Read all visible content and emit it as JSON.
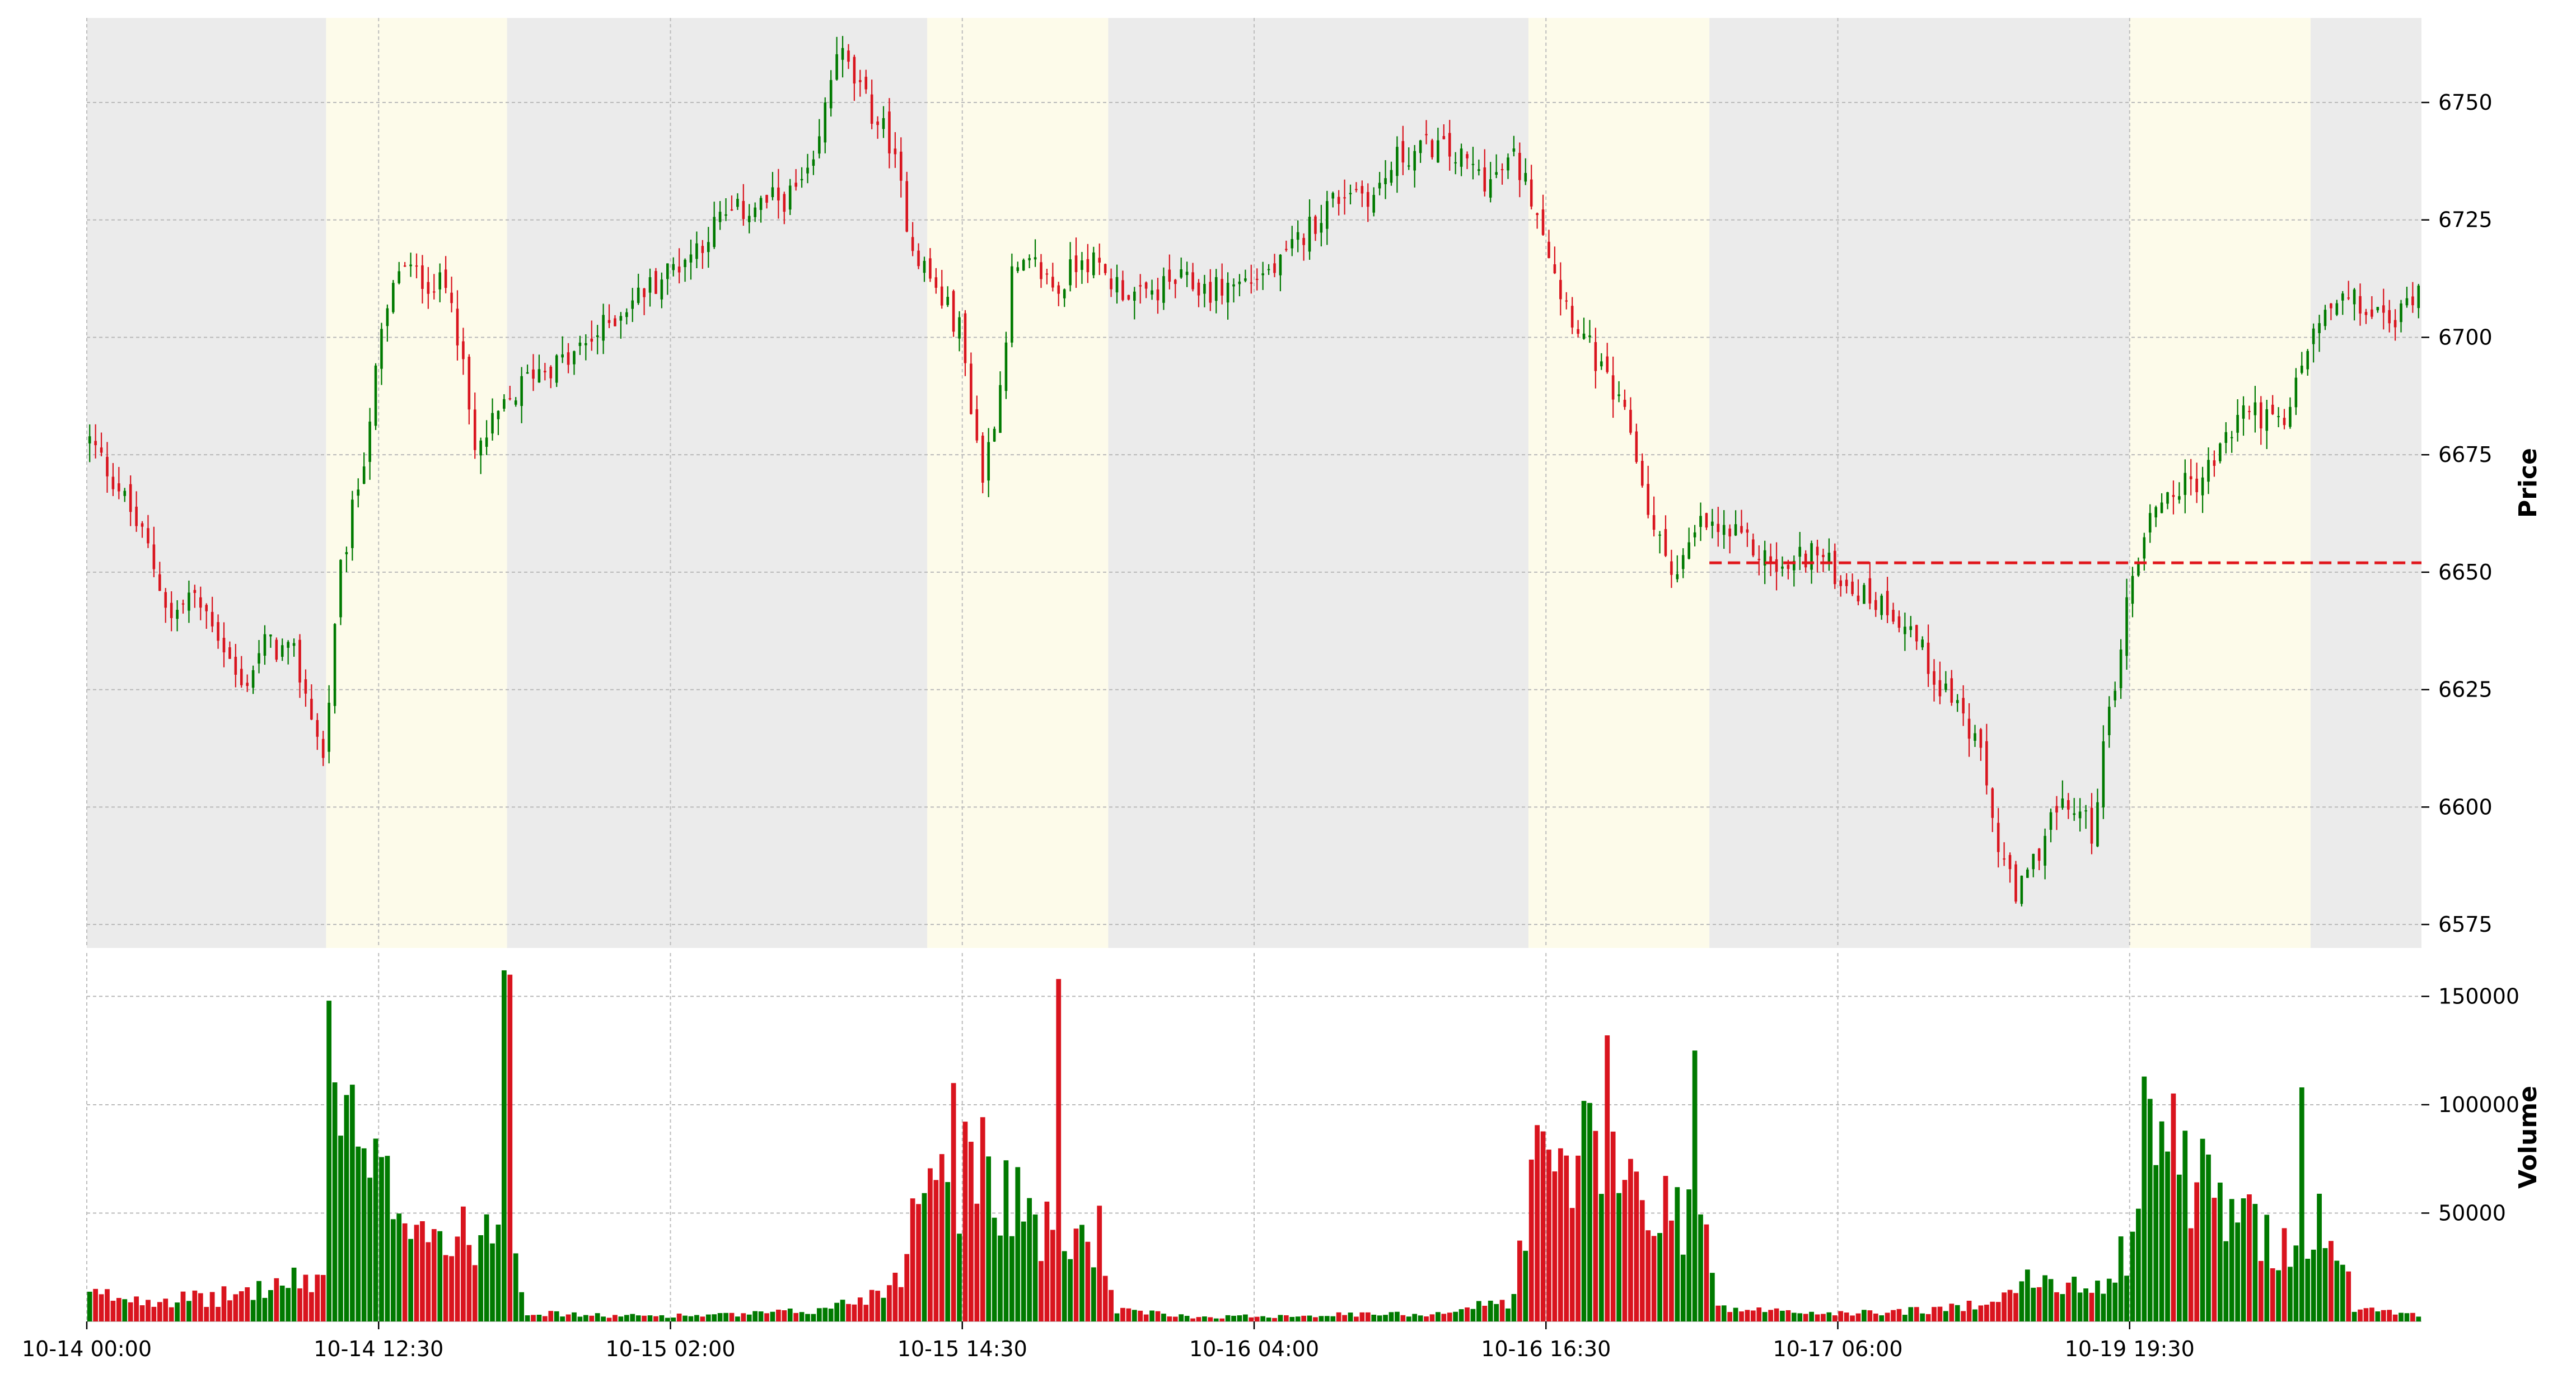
{
  "chart_data": {
    "type": "candlestick",
    "title": "",
    "x_tick_labels": [
      "10-14 00:00",
      "10-14 12:30",
      "10-15 02:00",
      "10-15 14:30",
      "10-16 04:00",
      "10-16 16:30",
      "10-17 06:00",
      "10-19 19:30"
    ],
    "price_panel": {
      "ylabel": "Price",
      "ylim": [
        6570,
        6768
      ],
      "yticks": [
        6575,
        6600,
        6625,
        6650,
        6675,
        6700,
        6725,
        6750
      ],
      "reference_line": {
        "value": 6652,
        "color": "#e0161b",
        "style": "dashed"
      },
      "session_shading": [
        {
          "from": 0,
          "to": 41,
          "color": "#ebebeb"
        },
        {
          "from": 41,
          "to": 72,
          "color": "#fdfbea"
        },
        {
          "from": 72,
          "to": 144,
          "color": "#ebebeb"
        },
        {
          "from": 144,
          "to": 175,
          "color": "#fdfbea"
        },
        {
          "from": 175,
          "to": 247,
          "color": "#ebebeb"
        },
        {
          "from": 247,
          "to": 278,
          "color": "#fdfbea"
        },
        {
          "from": 278,
          "to": 350,
          "color": "#ebebeb"
        },
        {
          "from": 350,
          "to": 381,
          "color": "#fdfbea"
        },
        {
          "from": 381,
          "to": 400,
          "color": "#ebebeb"
        }
      ]
    },
    "volume_panel": {
      "ylabel": "Volume",
      "ylim": [
        0,
        170000
      ],
      "yticks": [
        50000,
        100000,
        150000
      ]
    },
    "close_anchors": [
      [
        0,
        6678
      ],
      [
        5,
        6668
      ],
      [
        10,
        6655
      ],
      [
        14,
        6640
      ],
      [
        17,
        6645
      ],
      [
        21,
        6640
      ],
      [
        26,
        6625
      ],
      [
        30,
        6635
      ],
      [
        35,
        6632
      ],
      [
        38,
        6620
      ],
      [
        40,
        6610
      ],
      [
        43,
        6650
      ],
      [
        47,
        6675
      ],
      [
        50,
        6700
      ],
      [
        53,
        6715
      ],
      [
        58,
        6712
      ],
      [
        62,
        6710
      ],
      [
        66,
        6675
      ],
      [
        70,
        6683
      ],
      [
        76,
        6693
      ],
      [
        82,
        6695
      ],
      [
        88,
        6702
      ],
      [
        92,
        6707
      ],
      [
        97,
        6712
      ],
      [
        103,
        6718
      ],
      [
        108,
        6725
      ],
      [
        114,
        6728
      ],
      [
        120,
        6730
      ],
      [
        124,
        6735
      ],
      [
        128,
        6762
      ],
      [
        132,
        6752
      ],
      [
        137,
        6742
      ],
      [
        141,
        6720
      ],
      [
        145,
        6710
      ],
      [
        149,
        6702
      ],
      [
        153,
        6670
      ],
      [
        156,
        6690
      ],
      [
        158,
        6713
      ],
      [
        162,
        6715
      ],
      [
        166,
        6710
      ],
      [
        170,
        6718
      ],
      [
        174,
        6713
      ],
      [
        180,
        6708
      ],
      [
        186,
        6712
      ],
      [
        192,
        6710
      ],
      [
        198,
        6712
      ],
      [
        204,
        6715
      ],
      [
        208,
        6722
      ],
      [
        212,
        6728
      ],
      [
        216,
        6732
      ],
      [
        220,
        6730
      ],
      [
        224,
        6738
      ],
      [
        230,
        6741
      ],
      [
        236,
        6737
      ],
      [
        240,
        6733
      ],
      [
        244,
        6738
      ],
      [
        248,
        6728
      ],
      [
        252,
        6710
      ],
      [
        256,
        6700
      ],
      [
        260,
        6690
      ],
      [
        264,
        6680
      ],
      [
        268,
        6658
      ],
      [
        272,
        6650
      ],
      [
        276,
        6660
      ],
      [
        281,
        6658
      ],
      [
        285,
        6655
      ],
      [
        290,
        6650
      ],
      [
        295,
        6655
      ],
      [
        299,
        6650
      ],
      [
        304,
        6645
      ],
      [
        308,
        6643
      ],
      [
        312,
        6638
      ],
      [
        316,
        6628
      ],
      [
        320,
        6622
      ],
      [
        324,
        6610
      ],
      [
        327,
        6592
      ],
      [
        330,
        6580
      ],
      [
        333,
        6588
      ],
      [
        336,
        6598
      ],
      [
        340,
        6600
      ],
      [
        343,
        6595
      ],
      [
        346,
        6620
      ],
      [
        350,
        6650
      ],
      [
        354,
        6665
      ],
      [
        358,
        6668
      ],
      [
        362,
        6670
      ],
      [
        366,
        6678
      ],
      [
        369,
        6685
      ],
      [
        373,
        6683
      ],
      [
        376,
        6680
      ],
      [
        379,
        6695
      ],
      [
        383,
        6705
      ],
      [
        387,
        6708
      ],
      [
        391,
        6705
      ],
      [
        395,
        6703
      ],
      [
        399,
        6712
      ]
    ],
    "volume_profile": [
      [
        0,
        12000
      ],
      [
        20,
        10000
      ],
      [
        35,
        18000
      ],
      [
        40,
        20000
      ],
      [
        41,
        145000
      ],
      [
        43,
        95000
      ],
      [
        48,
        65000
      ],
      [
        55,
        55000
      ],
      [
        62,
        35000
      ],
      [
        70,
        48000
      ],
      [
        71,
        162000
      ],
      [
        73,
        38000
      ],
      [
        75,
        4000
      ],
      [
        90,
        2500
      ],
      [
        110,
        3000
      ],
      [
        125,
        5000
      ],
      [
        136,
        14000
      ],
      [
        140,
        30000
      ],
      [
        144,
        88000
      ],
      [
        148,
        55000
      ],
      [
        152,
        85000
      ],
      [
        156,
        65000
      ],
      [
        160,
        55000
      ],
      [
        164,
        40000
      ],
      [
        168,
        38000
      ],
      [
        173,
        40000
      ],
      [
        176,
        5000
      ],
      [
        190,
        2000
      ],
      [
        210,
        3000
      ],
      [
        230,
        3500
      ],
      [
        244,
        10000
      ],
      [
        247,
        72000
      ],
      [
        252,
        70000
      ],
      [
        258,
        85000
      ],
      [
        262,
        70000
      ],
      [
        266,
        60000
      ],
      [
        272,
        50000
      ],
      [
        276,
        55000
      ],
      [
        279,
        6000
      ],
      [
        300,
        3500
      ],
      [
        320,
        6000
      ],
      [
        332,
        18000
      ],
      [
        340,
        15000
      ],
      [
        346,
        22000
      ],
      [
        350,
        38000
      ],
      [
        352,
        105000
      ],
      [
        356,
        80000
      ],
      [
        360,
        70000
      ],
      [
        366,
        50000
      ],
      [
        372,
        42000
      ],
      [
        378,
        35000
      ],
      [
        382,
        45000
      ],
      [
        384,
        28000
      ],
      [
        386,
        30000
      ],
      [
        388,
        6000
      ],
      [
        399,
        3000
      ]
    ],
    "volume_spikes": [
      [
        41,
        148000
      ],
      [
        71,
        162000
      ],
      [
        72,
        160000
      ],
      [
        148,
        110000
      ],
      [
        166,
        158000
      ],
      [
        260,
        132000
      ],
      [
        275,
        125000
      ],
      [
        352,
        113000
      ],
      [
        379,
        108000
      ]
    ],
    "colors": {
      "up": "#007a00",
      "down": "#d9141e"
    }
  }
}
